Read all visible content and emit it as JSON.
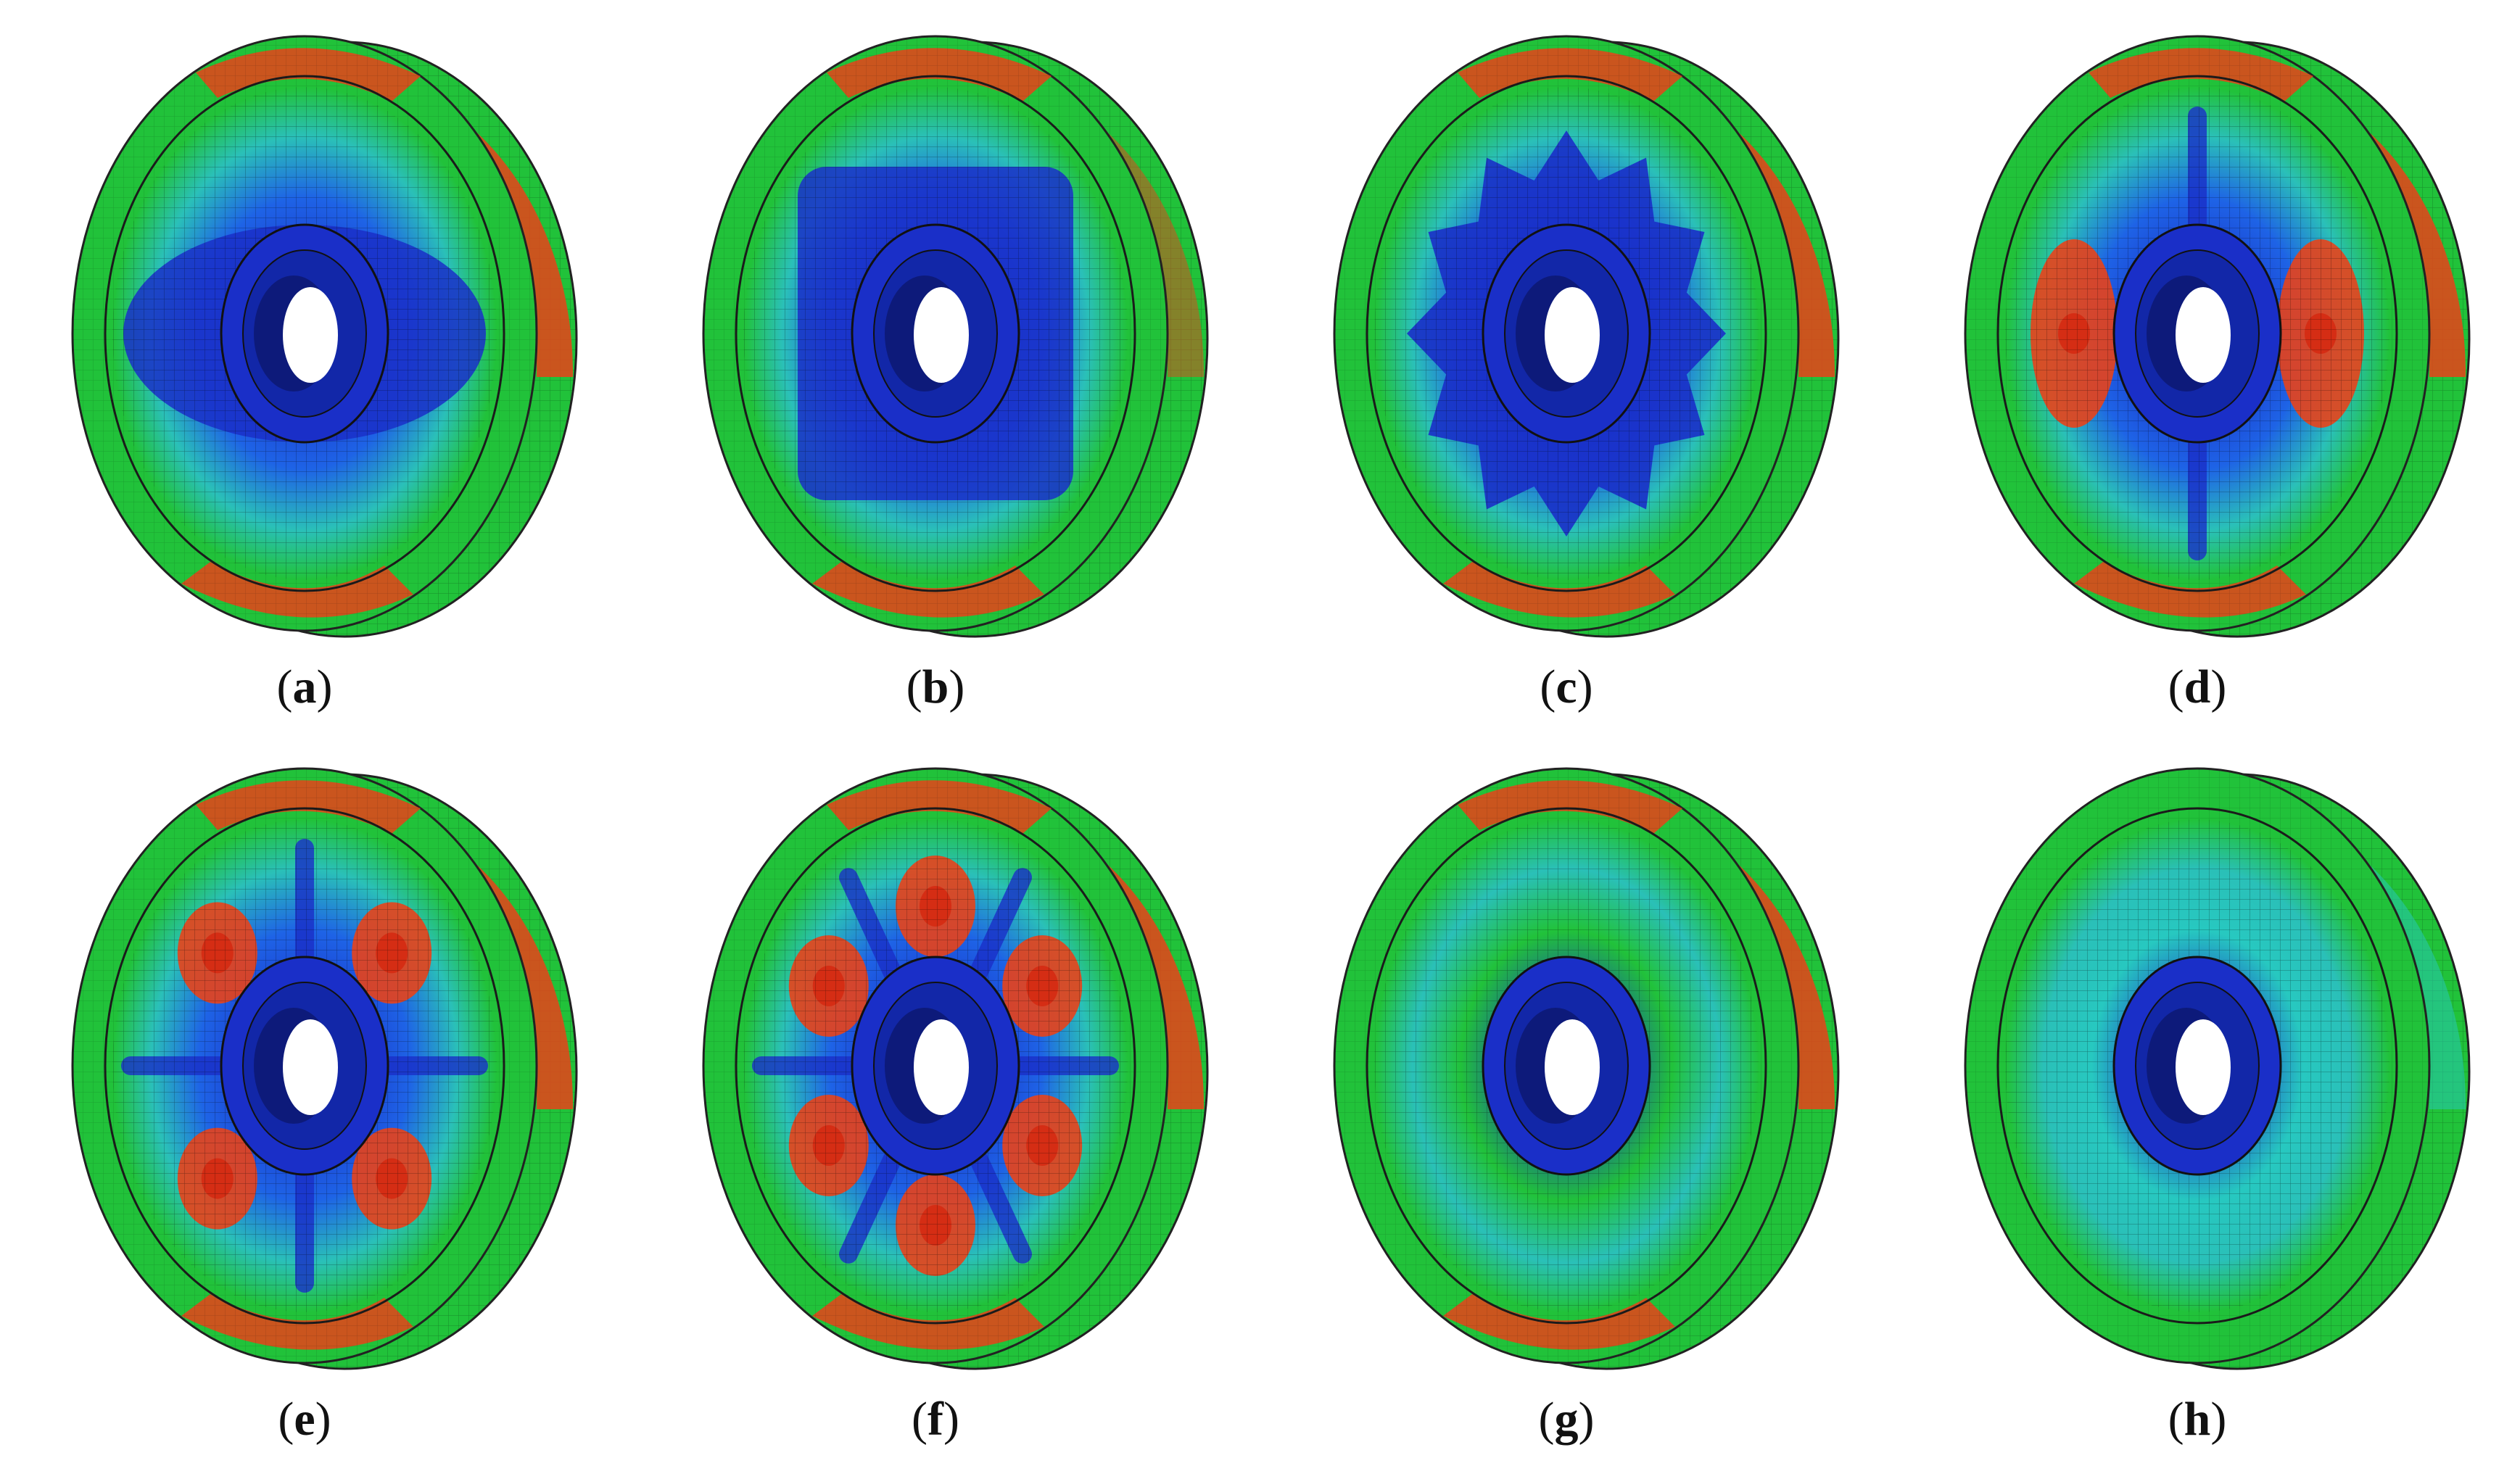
{
  "figure": {
    "panels": [
      {
        "id": "a",
        "caption": "a",
        "mode": "dipole",
        "sides": 2,
        "colors": {
          "hub": "#1a2fc8",
          "web": "#1e63e6",
          "rim": "#21c23a",
          "hot": "#e8421a"
        }
      },
      {
        "id": "b",
        "caption": "b",
        "mode": "square",
        "sides": 4,
        "colors": {
          "hub": "#1a2fc8",
          "web": "#1e63e6",
          "rim": "#21c23a",
          "hot": "#e8421a"
        }
      },
      {
        "id": "c",
        "caption": "c",
        "mode": "gear",
        "sides": 12,
        "colors": {
          "hub": "#1a2fc8",
          "web": "#1e63e6",
          "rim": "#21c23a",
          "hot": "#e8421a"
        }
      },
      {
        "id": "d",
        "caption": "d",
        "mode": "s-shape",
        "sides": 2,
        "colors": {
          "hub": "#1a2fc8",
          "web": "#1e63e6",
          "rim": "#21c23a",
          "hot": "#e8421a"
        }
      },
      {
        "id": "e",
        "caption": "e",
        "mode": "four-lobe",
        "sides": 4,
        "colors": {
          "hub": "#1a2fc8",
          "web": "#1e63e6",
          "rim": "#21c23a",
          "hot": "#e8421a"
        }
      },
      {
        "id": "f",
        "caption": "f",
        "mode": "six-lobe",
        "sides": 6,
        "colors": {
          "hub": "#1a2fc8",
          "web": "#1e63e6",
          "rim": "#21c23a",
          "hot": "#e8421a"
        }
      },
      {
        "id": "g",
        "caption": "g",
        "mode": "axial",
        "sides": 0,
        "colors": {
          "hub": "#1a2fc8",
          "web": "#21c23a",
          "rim": "#21c23a",
          "hot": "#e8421a"
        }
      },
      {
        "id": "h",
        "caption": "h",
        "mode": "uniform",
        "sides": 0,
        "colors": {
          "hub": "#1a2fc8",
          "web": "#27c8c0",
          "rim": "#21c23a",
          "hot": "#27c8c0"
        }
      }
    ]
  }
}
